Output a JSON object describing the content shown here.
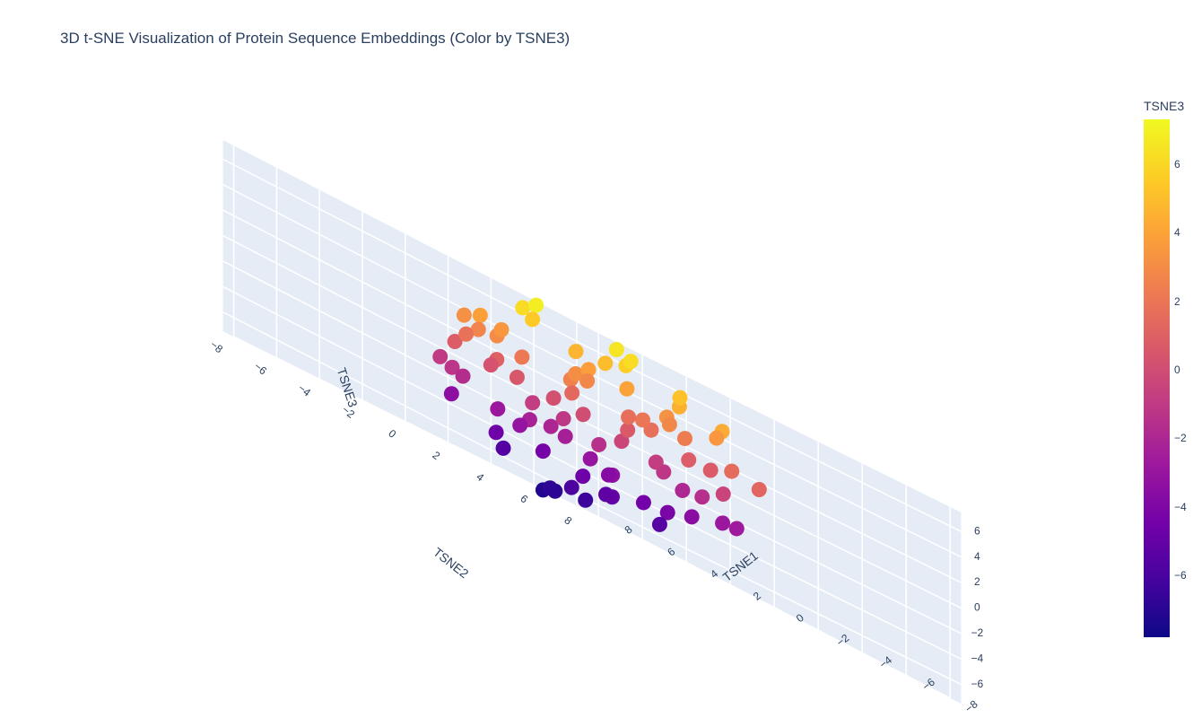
{
  "chart_data": {
    "type": "scatter3d",
    "title": "3D t-SNE Visualization of Protein Sequence Embeddings (Color by TSNE3)",
    "xlabel": "TSNE1",
    "ylabel": "TSNE2",
    "zlabel": "TSNE3",
    "x_ticks": [
      "−8",
      "−6",
      "−4",
      "−2",
      "0",
      "2",
      "4",
      "6",
      "8"
    ],
    "y_ticks": [
      "−8",
      "−6",
      "−4",
      "−2",
      "0",
      "2",
      "4",
      "6",
      "8"
    ],
    "z_ticks": [
      "−6",
      "−4",
      "−2",
      "0",
      "2",
      "4",
      "6"
    ],
    "xlim": [
      -8.5,
      8.5
    ],
    "ylim": [
      -8.5,
      8.5
    ],
    "zlim": [
      -7.5,
      7.5
    ],
    "colorscale": "plasma",
    "colorbar": {
      "title": "TSNE3",
      "range": [
        -7.8,
        7.3
      ],
      "ticks": [
        "6",
        "4",
        "2",
        "0",
        "−2",
        "−4",
        "−6"
      ],
      "tick_values": [
        6,
        4,
        2,
        0,
        -2,
        -4,
        -6
      ]
    },
    "points": [
      [
        -3.1,
        1.2,
        2.4
      ],
      [
        2.6,
        -1.8,
        1.1
      ],
      [
        0.4,
        3.3,
        -0.7
      ],
      [
        -1.9,
        -2.6,
        3.2
      ],
      [
        3.4,
        2.1,
        -2.3
      ],
      [
        -4.2,
        0.3,
        0.9
      ],
      [
        1.1,
        -4.1,
        2.8
      ],
      [
        0.2,
        0.8,
        5.1
      ],
      [
        -2.4,
        3.6,
        -2.8
      ],
      [
        4.1,
        -0.6,
        0.4
      ],
      [
        -0.7,
        -1.1,
        -4.6
      ],
      [
        2.3,
        3.9,
        1.7
      ],
      [
        -3.6,
        -3.2,
        -1.4
      ],
      [
        0.9,
        -2.4,
        -3.1
      ],
      [
        -1.3,
        4.4,
        3.6
      ],
      [
        3.7,
        -3.3,
        -0.9
      ],
      [
        -4.8,
        1.9,
        -2.6
      ],
      [
        1.6,
        1.4,
        3.9
      ],
      [
        -0.4,
        -3.8,
        0.6
      ],
      [
        2.9,
        0.6,
        -4.3
      ],
      [
        -2.1,
        -0.5,
        5.8
      ],
      [
        0.7,
        4.8,
        -1.9
      ],
      [
        -3.3,
        2.7,
        4.4
      ],
      [
        4.6,
        1.3,
        2.2
      ],
      [
        -1.6,
        -4.4,
        -2.2
      ],
      [
        1.9,
        -1.3,
        6.2
      ],
      [
        -0.9,
        2.2,
        -5.4
      ],
      [
        3.2,
        -2.7,
        3.3
      ],
      [
        -4.4,
        -1.6,
        1.8
      ],
      [
        0.1,
        -0.2,
        -6.4
      ],
      [
        2.1,
        2.8,
        -3.6
      ],
      [
        -2.8,
        -3.7,
        2.6
      ],
      [
        5.1,
        -0.9,
        -1.6
      ],
      [
        -0.2,
        5.2,
        0.8
      ],
      [
        1.4,
        -5.0,
        -1.2
      ],
      [
        -5.3,
        0.8,
        -0.4
      ],
      [
        2.7,
        1.9,
        4.8
      ],
      [
        -1.2,
        -2.1,
        -5.9
      ],
      [
        3.9,
        3.4,
        0.1
      ],
      [
        -3.9,
        3.8,
        1.3
      ],
      [
        0.6,
        1.7,
        6.6
      ],
      [
        -2.6,
        0.9,
        -4.1
      ],
      [
        4.3,
        -2.2,
        -3.4
      ],
      [
        -0.8,
        -5.1,
        3.1
      ],
      [
        1.8,
        4.1,
        -4.4
      ],
      [
        -4.6,
        -2.9,
        4.1
      ],
      [
        2.4,
        -3.9,
        0.9
      ],
      [
        0.3,
        2.6,
        2.1
      ],
      [
        -1.7,
        1.6,
        -1.1
      ],
      [
        1.2,
        -0.7,
        -2.0
      ],
      [
        -0.5,
        -1.4,
        1.5
      ],
      [
        2.0,
        0.2,
        0.3
      ],
      [
        -2.2,
        -0.8,
        -0.3
      ],
      [
        0.8,
        2.4,
        0.7
      ],
      [
        -3.0,
        0.6,
        2.9
      ],
      [
        3.1,
        -1.1,
        3.6
      ],
      [
        -1.0,
        3.0,
        4.6
      ],
      [
        1.5,
        -2.9,
        -4.6
      ],
      [
        0.0,
        4.0,
        5.3
      ],
      [
        2.2,
        -0.4,
        6.9
      ],
      [
        -1.4,
        0.4,
        6.3
      ],
      [
        3.6,
        0.8,
        5.6
      ],
      [
        -2.9,
        -1.9,
        -3.3
      ],
      [
        4.0,
        2.6,
        -1.0
      ],
      [
        -0.3,
        -3.0,
        -0.8
      ],
      [
        1.0,
        0.9,
        -3.0
      ],
      [
        -3.7,
        1.4,
        -1.5
      ],
      [
        2.8,
        -3.0,
        1.9
      ],
      [
        -1.8,
        4.6,
        1.6
      ],
      [
        0.5,
        -4.6,
        4.0
      ],
      [
        -4.1,
        -0.6,
        3.4
      ],
      [
        3.3,
        3.0,
        2.9
      ],
      [
        -2.5,
        2.1,
        -3.5
      ],
      [
        1.3,
        1.9,
        -5.2
      ],
      [
        -0.6,
        -2.5,
        -6.8
      ],
      [
        2.5,
        -1.6,
        -5.6
      ],
      [
        -1.1,
        -3.3,
        -7.2
      ],
      [
        0.8,
        -0.9,
        -6.9
      ],
      [
        -3.4,
        -2.4,
        -5.0
      ],
      [
        4.4,
        0.0,
        -2.8
      ]
    ]
  }
}
